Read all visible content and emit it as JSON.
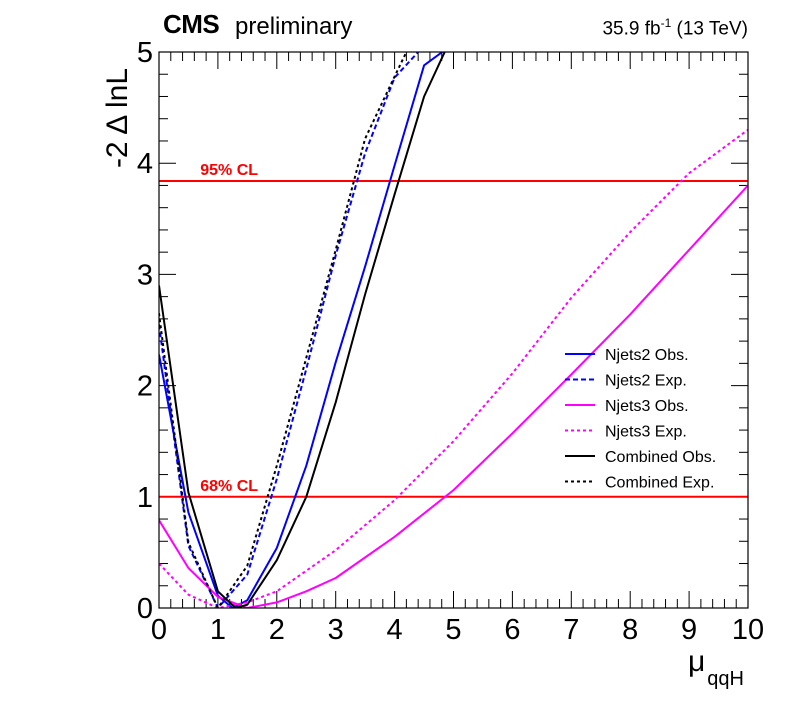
{
  "header": {
    "experiment": "CMS",
    "status": "preliminary",
    "lumi_value": "35.9 fb",
    "lumi_exp": "-1",
    "energy": "(13 TeV)"
  },
  "chart_data": {
    "type": "line",
    "title": "",
    "xlabel": "μ",
    "xlabel_sub": "qqH",
    "ylabel": "-2 Δ lnL",
    "xlim": [
      0,
      10
    ],
    "ylim": [
      0,
      5
    ],
    "xticks": [
      0,
      1,
      2,
      3,
      4,
      5,
      6,
      7,
      8,
      9,
      10
    ],
    "yticks": [
      0,
      1,
      2,
      3,
      4,
      5
    ],
    "grid": false,
    "legend_position": "right",
    "reference_lines": [
      {
        "label": "95% CL",
        "y": 3.84,
        "color": "#ff0000"
      },
      {
        "label": "68% CL",
        "y": 1.0,
        "color": "#ff0000"
      }
    ],
    "series": [
      {
        "name": "Njets2 Obs.",
        "color": "#0000ff",
        "dash": "solid",
        "x": [
          0.0,
          0.5,
          1.0,
          1.25,
          1.5,
          2.0,
          2.5,
          3.0,
          3.5,
          4.0,
          4.5,
          4.81
        ],
        "y": [
          2.28,
          0.86,
          0.11,
          0.0,
          0.07,
          0.54,
          1.28,
          2.21,
          3.07,
          3.98,
          4.88,
          5.0
        ]
      },
      {
        "name": "Njets2 Exp.",
        "color": "#0000ff",
        "dash": "dashed",
        "x": [
          0.0,
          0.5,
          1.0,
          1.5,
          2.0,
          2.5,
          3.0,
          3.5,
          4.0,
          4.4
        ],
        "y": [
          2.55,
          0.56,
          0.0,
          0.3,
          1.16,
          2.15,
          3.17,
          4.09,
          4.77,
          5.0
        ]
      },
      {
        "name": "Njets3 Obs.",
        "color": "#ff00ff",
        "dash": "solid",
        "x": [
          0.0,
          0.5,
          1.0,
          1.5,
          2.0,
          2.5,
          3.0,
          4.0,
          5.0,
          6.0,
          7.0,
          8.0,
          9.0,
          10.0
        ],
        "y": [
          0.79,
          0.36,
          0.1,
          0.0,
          0.05,
          0.15,
          0.27,
          0.64,
          1.06,
          1.57,
          2.1,
          2.64,
          3.22,
          3.8
        ]
      },
      {
        "name": "Njets3 Exp.",
        "color": "#ff00ff",
        "dash": "dotted",
        "x": [
          0.0,
          0.5,
          1.0,
          1.5,
          2.0,
          3.0,
          4.0,
          5.0,
          6.0,
          7.0,
          8.0,
          9.0,
          10.0
        ],
        "y": [
          0.4,
          0.12,
          0.0,
          0.05,
          0.15,
          0.52,
          0.97,
          1.5,
          2.11,
          2.79,
          3.38,
          3.91,
          4.3
        ]
      },
      {
        "name": "Combined Obs.",
        "color": "#000000",
        "dash": "solid",
        "x": [
          0.0,
          0.5,
          1.0,
          1.3,
          1.5,
          2.0,
          2.5,
          3.0,
          3.5,
          4.0,
          4.5,
          4.85
        ],
        "y": [
          2.9,
          1.04,
          0.15,
          0.0,
          0.03,
          0.43,
          1.0,
          1.85,
          2.82,
          3.72,
          4.6,
          5.0
        ]
      },
      {
        "name": "Combined Exp.",
        "color": "#000000",
        "dash": "dotted",
        "x": [
          0.0,
          0.5,
          1.0,
          1.5,
          2.0,
          2.5,
          3.0,
          3.5,
          4.0,
          4.2
        ],
        "y": [
          2.65,
          0.59,
          0.0,
          0.38,
          1.28,
          2.25,
          3.22,
          4.22,
          4.78,
          5.0
        ]
      }
    ]
  }
}
